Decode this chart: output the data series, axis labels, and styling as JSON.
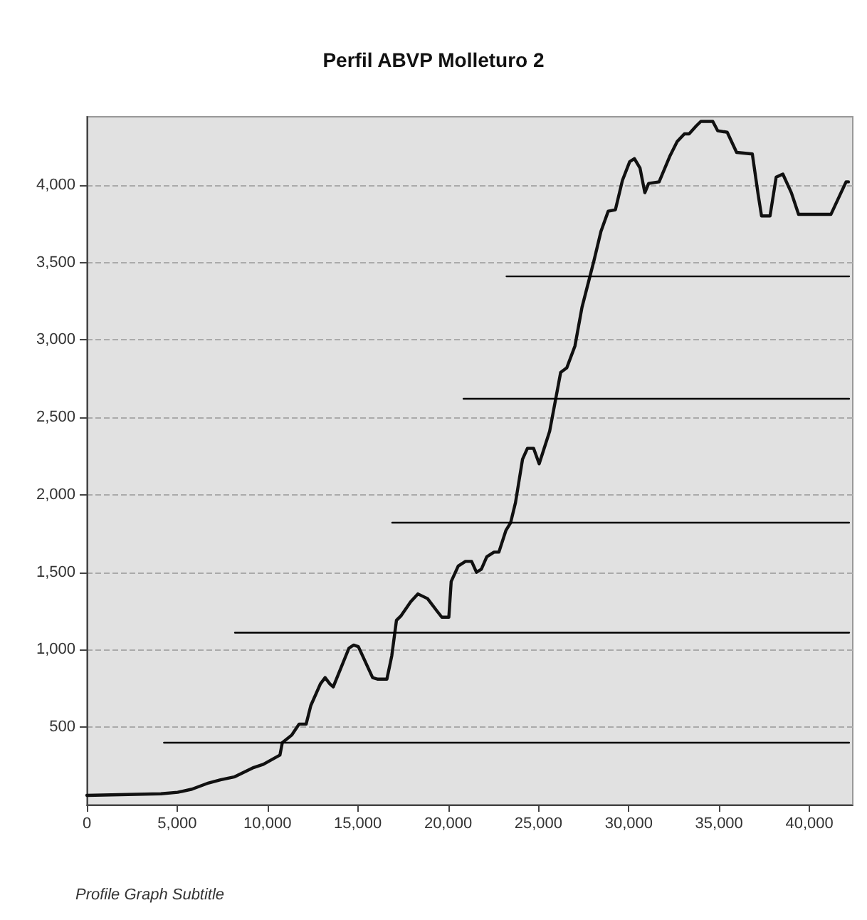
{
  "chart_data": {
    "type": "line",
    "title": "Perfil ABVP Molleturo 2",
    "annotations": [
      "Profile Graph Subtitle"
    ],
    "xlim": [
      0,
      42400
    ],
    "xticks": [
      0,
      {
        "value": 5000,
        "label": "5,000"
      },
      {
        "value": 10000,
        "label": "10,000"
      },
      {
        "value": 15000,
        "label": "15,000"
      },
      {
        "value": 20000,
        "label": "20,000"
      },
      {
        "value": 25000,
        "label": "25,000"
      },
      {
        "value": 30000,
        "label": "30,000"
      },
      {
        "value": 35000,
        "label": "35,000"
      },
      {
        "value": 40000,
        "label": "40,000"
      }
    ],
    "ylim": [
      0,
      4440
    ],
    "yticks": [
      500,
      {
        "value": 1000,
        "label": "1,000"
      },
      {
        "value": 1500,
        "label": "1,500"
      },
      {
        "value": 2000,
        "label": "2,000"
      },
      {
        "value": 2500,
        "label": "2,500"
      },
      {
        "value": 3000,
        "label": "3,000"
      },
      {
        "value": 3500,
        "label": "3,500"
      },
      {
        "value": 4000,
        "label": "4,000"
      }
    ],
    "grid": "y",
    "marker": "none",
    "line_style": "solid",
    "series": [
      {
        "color": "#111111",
        "x": [
          0,
          4100,
          5030,
          5820,
          6740,
          7400,
          8190,
          9240,
          9770,
          10690,
          10820,
          11350,
          11750,
          12140,
          12400,
          12930,
          13190,
          13450,
          13640,
          14510,
          14770,
          15030,
          15820,
          16090,
          16610,
          16880,
          17140,
          17400,
          17930,
          18330,
          18860,
          19380,
          19650,
          20040,
          20170,
          20560,
          20960,
          21300,
          21570,
          21840,
          22140,
          22540,
          22810,
          23200,
          23460,
          23730,
          24120,
          24390,
          24730,
          25040,
          25620,
          26230,
          26570,
          27020,
          27410,
          28070,
          28460,
          28860,
          29260,
          29650,
          30050,
          30310,
          30620,
          30890,
          31100,
          31680,
          32290,
          32680,
          33080,
          33340,
          33730,
          33990,
          34650,
          34920,
          35450,
          35970,
          36840,
          37160,
          37350,
          37820,
          38160,
          38530,
          39000,
          39400,
          41190,
          41630,
          42030,
          42160
        ],
        "values": [
          60,
          70,
          80,
          100,
          140,
          160,
          180,
          240,
          260,
          320,
          400,
          450,
          520,
          520,
          640,
          780,
          820,
          780,
          760,
          1010,
          1030,
          1020,
          820,
          810,
          810,
          960,
          1190,
          1220,
          1310,
          1360,
          1330,
          1250,
          1210,
          1210,
          1440,
          1540,
          1570,
          1570,
          1500,
          1520,
          1600,
          1630,
          1630,
          1770,
          1820,
          1950,
          2230,
          2300,
          2300,
          2200,
          2410,
          2790,
          2820,
          2960,
          3210,
          3510,
          3700,
          3830,
          3840,
          4030,
          4150,
          4170,
          4110,
          3950,
          4010,
          4020,
          4190,
          4280,
          4330,
          4330,
          4380,
          4410,
          4410,
          4350,
          4340,
          4210,
          4200,
          3940,
          3800,
          3800,
          4050,
          4070,
          3950,
          3810,
          3810,
          3920,
          4020,
          4020
        ]
      },
      {
        "color": "#000000",
        "x": [
          4270,
          42200
        ],
        "values": [
          400,
          400
        ]
      },
      {
        "color": "#000000",
        "x": [
          8200,
          42200
        ],
        "values": [
          1110,
          1110
        ]
      },
      {
        "color": "#000000",
        "x": [
          16900,
          42200
        ],
        "values": [
          1820,
          1820
        ]
      },
      {
        "color": "#000000",
        "x": [
          20850,
          42200
        ],
        "values": [
          2620,
          2620
        ]
      },
      {
        "color": "#000000",
        "x": [
          23230,
          42200
        ],
        "values": [
          3410,
          3410
        ]
      }
    ]
  }
}
